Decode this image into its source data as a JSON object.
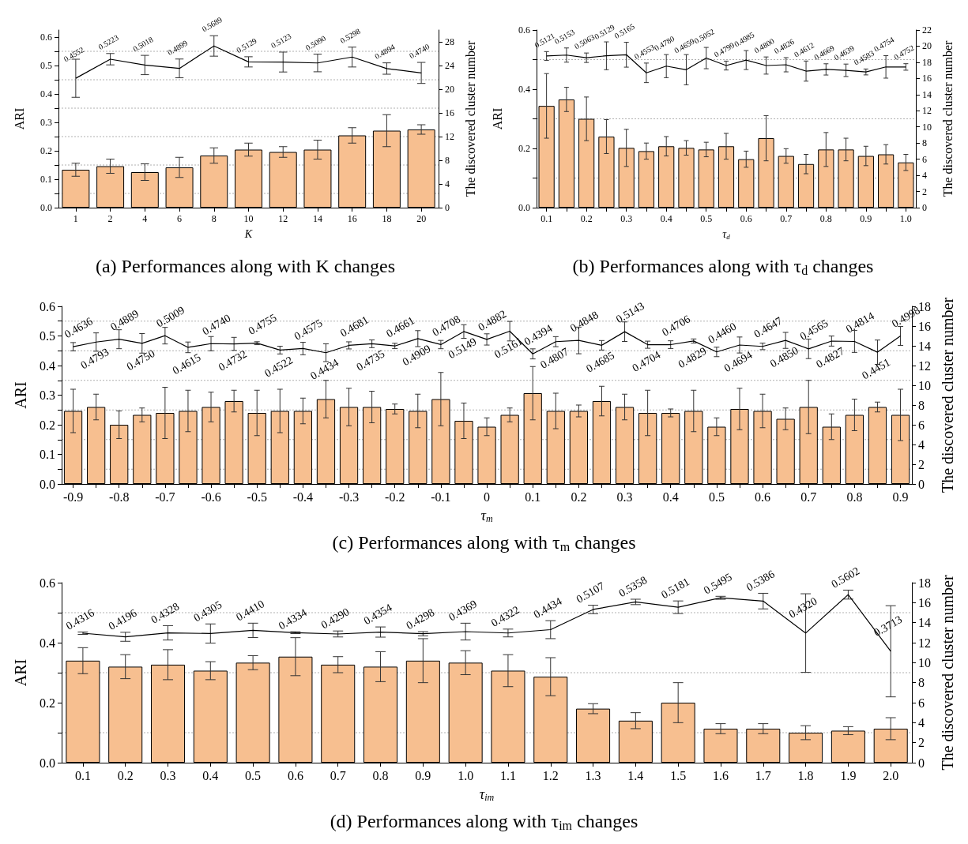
{
  "chart_data": [
    {
      "type": "bar",
      "title": "(a) Performances along with K changes",
      "xlabel": "K",
      "ylabel": "ARI",
      "y2label": "The discovered cluster number",
      "grid": "y",
      "categories": [
        "1",
        "2",
        "4",
        "6",
        "8",
        "10",
        "12",
        "14",
        "16",
        "18",
        "20"
      ],
      "ylim": [
        0,
        0.625
      ],
      "yticks": [
        {
          "value": 0,
          "label": "0.0"
        },
        {
          "value": 0.05,
          "label": null
        },
        0.1,
        {
          "value": 0.15,
          "label": null
        },
        0.2,
        {
          "value": 0.25,
          "label": null
        },
        0.3,
        {
          "value": 0.35,
          "label": null
        },
        0.4,
        {
          "value": 0.45,
          "label": null
        },
        0.5,
        {
          "value": 0.55,
          "label": null
        },
        0.6
      ],
      "y2lim": [
        0,
        30
      ],
      "y2ticks": [
        0,
        4,
        8,
        12,
        16,
        20,
        24,
        28
      ],
      "series": [
        {
          "axis": "y2",
          "color": "#f7bf90",
          "values": [
            6.4,
            7.0,
            6.0,
            6.8,
            8.8,
            9.8,
            9.4,
            9.8,
            12.2,
            13.0,
            13.2
          ],
          "errors": [
            1.1,
            1.2,
            1.4,
            1.7,
            1.3,
            1.1,
            0.9,
            1.6,
            1.3,
            2.7,
            0.8
          ]
        },
        {
          "type": "line",
          "color": "#000000",
          "values": [
            0.4552,
            0.5223,
            0.5018,
            0.4899,
            0.5689,
            0.5129,
            0.5123,
            0.509,
            0.5298,
            0.4894,
            0.474
          ],
          "value_labels": [
            "0.4552",
            "0.5223",
            "0.5018",
            "0.4899",
            "0.5689",
            "0.5129",
            "0.5123",
            "0.5090",
            "0.5298",
            "0.4894",
            "0.4740"
          ],
          "errors": [
            0.067,
            0.02,
            0.034,
            0.033,
            0.036,
            0.018,
            0.035,
            0.031,
            0.035,
            0.02,
            0.037
          ]
        }
      ]
    },
    {
      "type": "bar",
      "title": "(b) Performances along with τ$_{d}$ changes",
      "xlabel": "τ$_{d}$",
      "ylabel": "ARI",
      "y2label": "The discovered cluster number",
      "grid": "y",
      "categories": [
        "0.1",
        null,
        "0.2",
        null,
        "0.3",
        null,
        "0.4",
        null,
        "0.5",
        null,
        "0.6",
        null,
        "0.7",
        null,
        "0.8",
        null,
        "0.9",
        null,
        "1.0"
      ],
      "ylim": [
        0,
        0.6
      ],
      "yticks": [
        {
          "value": 0,
          "label": "0.0"
        },
        {
          "value": 0.1,
          "label": null
        },
        0.2,
        {
          "value": 0.3,
          "label": null
        },
        0.4,
        {
          "value": 0.5,
          "label": null
        },
        0.6
      ],
      "y2lim": [
        0,
        22
      ],
      "y2ticks": [
        0,
        2,
        4,
        6,
        8,
        10,
        12,
        14,
        16,
        18,
        20,
        22
      ],
      "series": [
        {
          "axis": "y2",
          "color": "#f7bf90",
          "values": [
            12.6,
            13.4,
            11.0,
            8.8,
            7.4,
            7.0,
            7.6,
            7.4,
            7.2,
            7.6,
            6.0,
            8.6,
            6.4,
            5.4,
            7.2,
            7.2,
            6.4,
            6.6,
            5.6
          ],
          "errors": [
            4.0,
            1.5,
            2.7,
            2.1,
            2.3,
            1.0,
            1.2,
            0.9,
            0.9,
            1.6,
            1.0,
            2.8,
            0.9,
            1.2,
            2.1,
            1.4,
            1.2,
            1.2,
            1.0
          ]
        },
        {
          "type": "line",
          "color": "#000000",
          "values": [
            0.5121,
            0.5153,
            0.5063,
            0.5129,
            0.5165,
            0.4553,
            0.478,
            0.4659,
            0.5052,
            0.4799,
            0.4985,
            0.48,
            0.4826,
            0.4612,
            0.4669,
            0.4639,
            0.4583,
            0.4754,
            0.4752
          ],
          "value_labels": [
            "0.5121",
            "0.5153",
            "0.5063",
            "0.5129",
            "0.5165",
            "0.4553",
            "0.4780",
            "0.4659",
            "0.5052",
            "0.4799",
            "0.4985",
            "0.4800",
            "0.4826",
            "0.4612",
            "0.4669",
            "0.4639",
            "0.4583",
            "0.4754",
            "0.4752"
          ],
          "errors": [
            0.015,
            0.024,
            0.016,
            0.047,
            0.042,
            0.033,
            0.039,
            0.051,
            0.036,
            0.015,
            0.032,
            0.029,
            0.024,
            0.034,
            0.019,
            0.021,
            0.01,
            0.038,
            0.011
          ]
        }
      ]
    },
    {
      "type": "bar",
      "title": "(c) Performances along with τ$_{m}$ changes",
      "xlabel": "τ$_{m}$",
      "ylabel": "ARI",
      "y2label": "The discovered cluster number",
      "grid": "y",
      "categories": [
        "-0.9",
        null,
        "-0.8",
        null,
        "-0.7",
        null,
        "-0.6",
        null,
        "-0.5",
        null,
        "-0.4",
        null,
        "-0.3",
        null,
        "-0.2",
        null,
        "-0.1",
        null,
        "0",
        null,
        "0.1",
        null,
        "0.2",
        null,
        "0.3",
        null,
        "0.4",
        null,
        "0.5",
        null,
        "0.6",
        null,
        "0.7",
        null,
        "0.8",
        null,
        "0.9"
      ],
      "ylim": [
        0,
        0.6
      ],
      "yticks": [
        {
          "value": 0,
          "label": "0.0"
        },
        {
          "value": 0.05,
          "label": null
        },
        0.1,
        {
          "value": 0.15,
          "label": null
        },
        0.2,
        {
          "value": 0.25,
          "label": null
        },
        0.3,
        {
          "value": 0.35,
          "label": null
        },
        0.4,
        {
          "value": 0.45,
          "label": null
        },
        0.5,
        {
          "value": 0.55,
          "label": null
        },
        0.6
      ],
      "y2lim": [
        0,
        18
      ],
      "y2ticks": [
        0,
        2,
        4,
        6,
        8,
        10,
        12,
        14,
        16,
        18
      ],
      "series": [
        {
          "axis": "y2",
          "color": "#f7bf90",
          "values": [
            7.4,
            7.8,
            6.0,
            7.0,
            7.2,
            7.4,
            7.8,
            8.4,
            7.2,
            7.4,
            7.4,
            8.6,
            7.8,
            7.8,
            7.6,
            7.4,
            8.6,
            6.4,
            5.8,
            7.0,
            9.2,
            7.4,
            7.4,
            8.4,
            7.8,
            7.2,
            7.2,
            7.4,
            5.8,
            7.6,
            7.4,
            6.6,
            7.8,
            5.8,
            7.0,
            7.8,
            7.0
          ],
          "errors": [
            2.2,
            1.3,
            1.4,
            0.7,
            2.6,
            2.1,
            1.5,
            1.1,
            2.3,
            2.2,
            1.3,
            1.9,
            1.9,
            1.6,
            0.5,
            1.7,
            2.7,
            1.8,
            0.9,
            0.7,
            2.7,
            1.8,
            0.6,
            1.5,
            1.3,
            2.3,
            0.4,
            2.1,
            0.9,
            2.1,
            1.7,
            1.1,
            2.7,
            1.3,
            1.6,
            0.5,
            2.6
          ]
        },
        {
          "type": "line",
          "color": "#000000",
          "values": [
            0.4636,
            0.4793,
            0.4889,
            0.475,
            0.5009,
            0.4615,
            0.474,
            0.4732,
            0.4755,
            0.4522,
            0.4575,
            0.4434,
            0.4681,
            0.4735,
            0.4661,
            0.4909,
            0.4708,
            0.5149,
            0.4882,
            0.5161,
            0.4394,
            0.4807,
            0.4848,
            0.4685,
            0.5143,
            0.4704,
            0.4706,
            0.4829,
            0.446,
            0.4694,
            0.4647,
            0.485,
            0.4565,
            0.4827,
            0.4814,
            0.4451,
            0.4998
          ],
          "value_labels": [
            "0.4636",
            "0.4793",
            "0.4889",
            "0.4750",
            "0.5009",
            "0.4615",
            "0.4740",
            "0.4732",
            "0.4755",
            "0.4522",
            "0.4575",
            "0.4434",
            "0.4681",
            "0.4735",
            "0.4661",
            "0.4909",
            "0.4708",
            "0.5149",
            "0.4882",
            "0.5161",
            "0.4394",
            "0.4807",
            "0.4848",
            "0.4685",
            "0.5143",
            "0.4704",
            "0.4706",
            "0.4829",
            "0.4460",
            "0.4694",
            "0.4647",
            "0.4850",
            "0.4565",
            "0.4827",
            "0.4814",
            "0.4451",
            "0.4998"
          ],
          "errors": [
            0.014,
            0.031,
            0.032,
            0.033,
            0.028,
            0.018,
            0.024,
            0.022,
            0.005,
            0.013,
            0.021,
            0.03,
            0.012,
            0.013,
            0.009,
            0.027,
            0.014,
            0.023,
            0.019,
            0.033,
            0.017,
            0.017,
            0.045,
            0.016,
            0.033,
            0.012,
            0.013,
            0.007,
            0.016,
            0.027,
            0.011,
            0.027,
            0.033,
            0.017,
            0.037,
            0.041,
            0.032
          ]
        }
      ]
    },
    {
      "type": "bar",
      "title": "(d) Performances along with τ$_{im}$ changes",
      "xlabel": "τ$_{im}$",
      "ylabel": "ARI",
      "y2label": "The discovered cluster number",
      "grid": "y",
      "categories": [
        "0.1",
        "0.2",
        "0.3",
        "0.4",
        "0.5",
        "0.6",
        "0.7",
        "0.8",
        "0.9",
        "1.0",
        "1.1",
        "1.2",
        "1.3",
        "1.4",
        "1.5",
        "1.6",
        "1.7",
        "1.8",
        "1.9",
        "2.0"
      ],
      "ylim": [
        0,
        0.6
      ],
      "yticks": [
        {
          "value": 0,
          "label": "0.0"
        },
        {
          "value": 0.1,
          "label": null
        },
        0.2,
        {
          "value": 0.3,
          "label": null
        },
        0.4,
        {
          "value": 0.5,
          "label": null
        },
        0.6
      ],
      "y2lim": [
        0,
        18
      ],
      "y2ticks": [
        0,
        2,
        4,
        6,
        8,
        10,
        12,
        14,
        16,
        18
      ],
      "series": [
        {
          "axis": "y2",
          "color": "#f7bf90",
          "values": [
            10.2,
            9.6,
            9.8,
            9.2,
            10.0,
            10.6,
            9.8,
            9.6,
            10.2,
            10.0,
            9.2,
            8.6,
            5.4,
            4.2,
            6.0,
            3.4,
            3.4,
            3.0,
            3.2,
            3.4
          ],
          "errors": [
            1.3,
            1.2,
            1.5,
            0.9,
            0.7,
            1.9,
            0.8,
            1.5,
            2.2,
            1.2,
            1.6,
            1.9,
            0.5,
            0.8,
            2.0,
            0.5,
            0.5,
            0.7,
            0.4,
            1.1
          ]
        },
        {
          "type": "line",
          "color": "#000000",
          "values": [
            0.4316,
            0.4196,
            0.4328,
            0.4305,
            0.441,
            0.4334,
            0.429,
            0.4354,
            0.4298,
            0.4369,
            0.4322,
            0.4434,
            0.5107,
            0.5358,
            0.5181,
            0.5495,
            0.5386,
            0.432,
            0.5602,
            0.3713
          ],
          "value_labels": [
            "0.4316",
            "0.4196",
            "0.4328",
            "0.4305",
            "0.4410",
            "0.4334",
            "0.4290",
            "0.4354",
            "0.4298",
            "0.4369",
            "0.4322",
            "0.4434",
            "0.5107",
            "0.5358",
            "0.5181",
            "0.5495",
            "0.5386",
            "0.4320",
            "0.5602",
            "0.3713"
          ],
          "errors": [
            0.004,
            0.015,
            0.024,
            0.032,
            0.024,
            0.003,
            0.01,
            0.017,
            0.007,
            0.028,
            0.013,
            0.03,
            0.014,
            0.009,
            0.021,
            0.005,
            0.026,
            0.131,
            0.015,
            0.152
          ]
        }
      ]
    }
  ]
}
